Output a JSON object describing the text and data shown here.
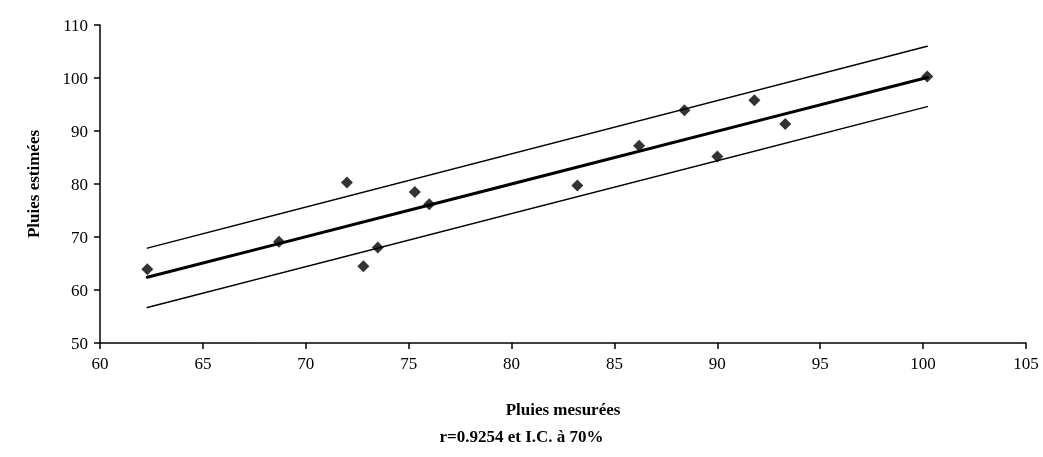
{
  "chart_data": {
    "type": "scatter",
    "xlabel": "Pluies mesurées",
    "ylabel": "Pluies estimées",
    "annotations": [
      "r=0.9254 et I.C. à 70%"
    ],
    "xlim": [
      60,
      105
    ],
    "xticks": [
      60,
      65,
      70,
      75,
      80,
      85,
      90,
      95,
      100,
      105
    ],
    "ylim": [
      50,
      110
    ],
    "yticks": [
      50,
      60,
      70,
      80,
      90,
      100,
      110
    ],
    "grid": false,
    "marker": "diamond",
    "series": [
      {
        "color": "#000000",
        "x": [
          62.3,
          68.7,
          72.0,
          72.8,
          73.5,
          75.3,
          76.0,
          83.2,
          86.2,
          88.4,
          90.0,
          91.8,
          93.3,
          100.2
        ],
        "values": [
          63.9,
          69.1,
          80.3,
          64.5,
          68.0,
          78.5,
          76.2,
          79.7,
          87.2,
          93.9,
          85.2,
          95.8,
          91.3,
          100.3
        ]
      },
      {
        "type": "line",
        "color": "#000000",
        "marker": "none",
        "line_style": "solid",
        "x": [
          62.3,
          100.2
        ],
        "values": [
          62.4,
          100.1
        ]
      },
      {
        "type": "line",
        "color": "#000000",
        "marker": "none",
        "line_style": "solid",
        "x": [
          62.3,
          100.2
        ],
        "values": [
          67.9,
          106.0
        ]
      },
      {
        "type": "line",
        "color": "#000000",
        "marker": "none",
        "line_style": "solid",
        "x": [
          62.3,
          100.2
        ],
        "values": [
          56.7,
          94.6
        ]
      }
    ]
  }
}
